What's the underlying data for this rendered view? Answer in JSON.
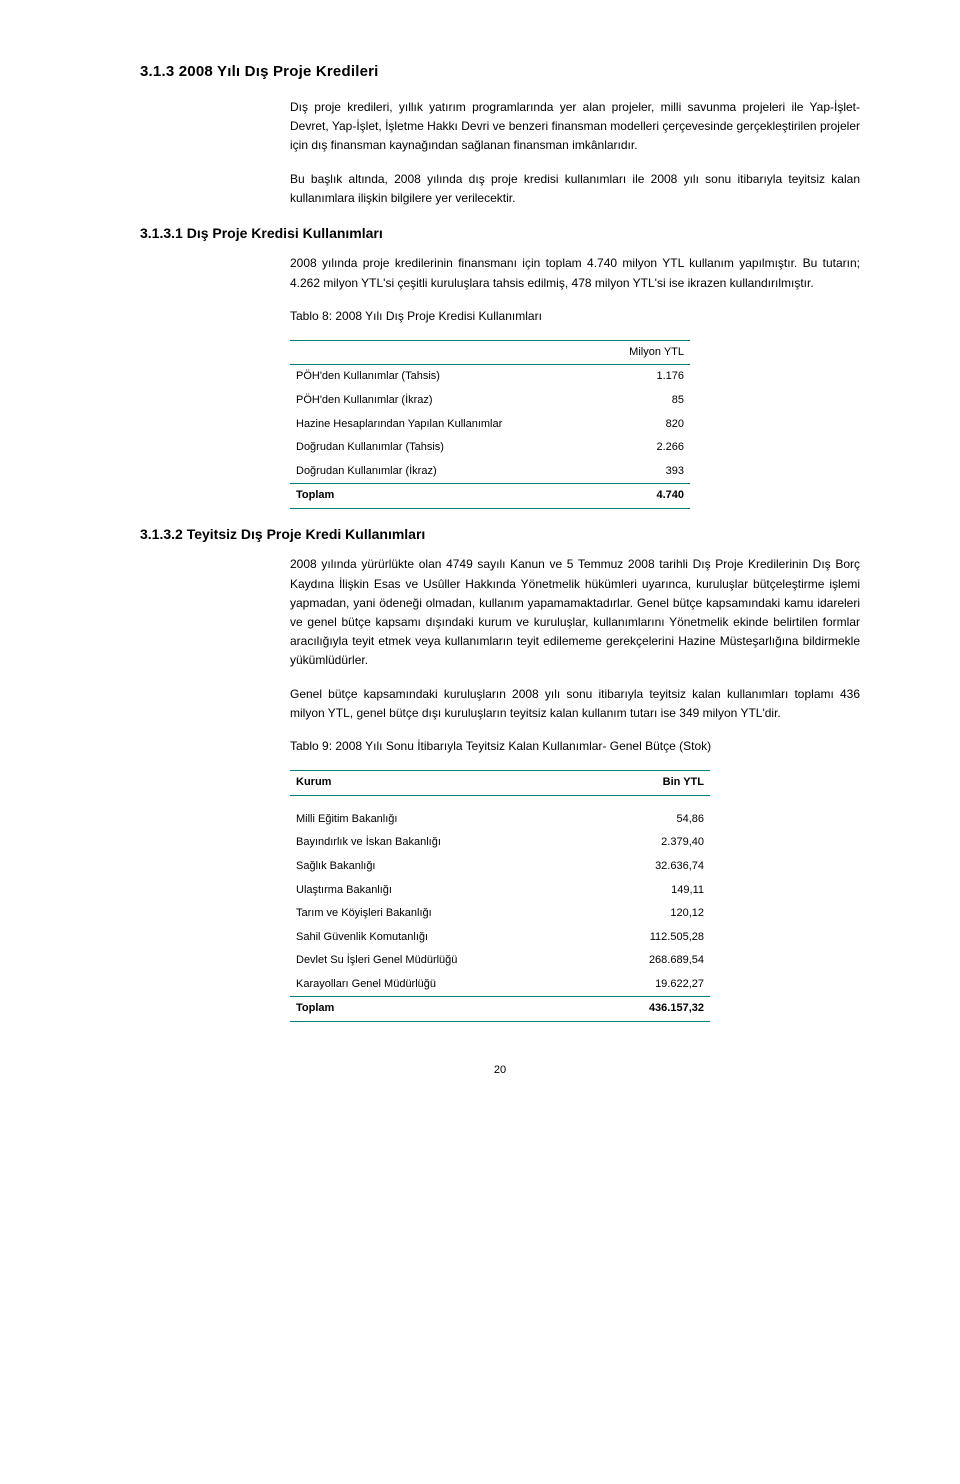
{
  "section": {
    "h313": "3.1.3  2008 Yılı Dış Proje Kredileri",
    "p1": "Dış proje kredileri, yıllık yatırım programlarında yer alan projeler, milli savunma projeleri ile Yap-İşlet-Devret, Yap-İşlet, İşletme Hakkı Devri ve benzeri finansman modelleri çerçevesinde gerçekleştirilen projeler için dış finansman kaynağından sağlanan finansman imkânlarıdır.",
    "p2": "Bu başlık altında, 2008 yılında dış proje kredisi kullanımları ile 2008 yılı sonu itibarıyla teyitsiz kalan kullanımlara ilişkin bilgilere yer verilecektir.",
    "h3131": "3.1.3.1  Dış Proje Kredisi Kullanımları",
    "p3": "2008 yılında proje kredilerinin finansmanı için toplam 4.740 milyon YTL kullanım yapılmıştır. Bu tutarın; 4.262 milyon YTL'si çeşitli kuruluşlara tahsis edilmiş, 478 milyon YTL'si  ise ikrazen kullandırılmıştır.",
    "t8cap": "Tablo 8: 2008 Yılı Dış Proje Kredisi Kullanımları",
    "t8": {
      "unit": "Milyon YTL",
      "rows": [
        {
          "label": "PÖH'den Kullanımlar (Tahsis)",
          "val": "1.176"
        },
        {
          "label": "PÖH'den Kullanımlar (İkraz)",
          "val": "85"
        },
        {
          "label": "Hazine Hesaplarından Yapılan Kullanımlar",
          "val": "820"
        },
        {
          "label": "Doğrudan Kullanımlar (Tahsis)",
          "val": "2.266"
        },
        {
          "label": "Doğrudan Kullanımlar (İkraz)",
          "val": "393"
        }
      ],
      "total_label": "Toplam",
      "total_val": "4.740"
    },
    "h3132": "3.1.3.2  Teyitsiz Dış Proje Kredi Kullanımları",
    "p4": "2008 yılında yürürlükte olan 4749 sayılı Kanun ve 5 Temmuz 2008 tarihli Dış Proje Kredilerinin Dış Borç Kaydına İlişkin Esas ve Usûller Hakkında Yönetmelik hükümleri uyarınca, kuruluşlar bütçeleştirme işlemi yapmadan, yani ödeneği olmadan, kullanım yapamamaktadırlar. Genel bütçe kapsamındaki kamu idareleri ve genel bütçe kapsamı dışındaki kurum ve kuruluşlar, kullanımlarını Yönetmelik ekinde belirtilen formlar aracılığıyla teyit etmek veya kullanımların teyit edilememe gerekçelerini Hazine Müsteşarlığına bildirmekle yükümlüdürler.",
    "p5": "Genel bütçe kapsamındaki kuruluşların 2008 yılı sonu itibarıyla teyitsiz kalan kullanımları toplamı 436 milyon YTL, genel bütçe dışı kuruluşların teyitsiz kalan kullanım tutarı ise 349 milyon YTL'dir.",
    "t9cap": "Tablo 9: 2008 Yılı Sonu İtibarıyla Teyitsiz Kalan Kullanımlar- Genel Bütçe (Stok)",
    "t9": {
      "col1": "Kurum",
      "col2": "Bin YTL",
      "rows": [
        {
          "label": "Milli Eğitim Bakanlığı",
          "val": "54,86"
        },
        {
          "label": "Bayındırlık ve İskan Bakanlığı",
          "val": "2.379,40"
        },
        {
          "label": "Sağlık Bakanlığı",
          "val": "32.636,74"
        },
        {
          "label": "Ulaştırma Bakanlığı",
          "val": "149,11"
        },
        {
          "label": "Tarım ve Köyişleri Bakanlığı",
          "val": "120,12"
        },
        {
          "label": "Sahil Güvenlik Komutanlığı",
          "val": "112.505,28"
        },
        {
          "label": "Devlet Su İşleri Genel Müdürlüğü",
          "val": "268.689,54"
        },
        {
          "label": "Karayolları Genel Müdürlüğü",
          "val": "19.622,27"
        }
      ],
      "total_label": "Toplam",
      "total_val": "436.157,32"
    }
  },
  "page_number": "20"
}
